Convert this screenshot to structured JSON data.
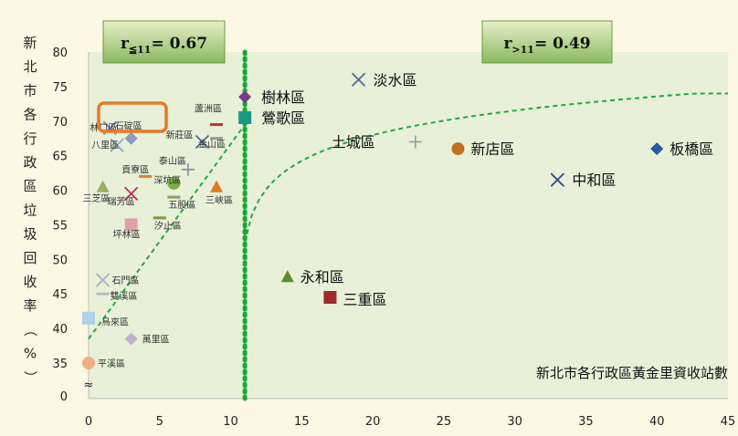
{
  "chart_data": {
    "type": "scatter",
    "ylabel": "新北市各行政區垃圾回收率（%）",
    "xlabel_annotation": "新北市各行政區黃金里資收站數",
    "xlim": [
      0,
      45
    ],
    "ylim": [
      0,
      80
    ],
    "x_ticks": [
      0,
      5,
      10,
      15,
      20,
      25,
      30,
      35,
      40,
      45
    ],
    "y_ticks": [
      0,
      35,
      40,
      45,
      50,
      55,
      60,
      65,
      70,
      75,
      80
    ],
    "y_break_symbol": "≈",
    "divider_x": 11,
    "banners": [
      {
        "base": "r",
        "sub": "≦11",
        "text": "= 0.67"
      },
      {
        "base": "r",
        "sub": ">11",
        "text": "= 0.49"
      }
    ],
    "highlight_label": "石碇區",
    "points": [
      {
        "name": "淡水區",
        "x": 19,
        "y": 76,
        "marker": "x",
        "color": "#5a6a9a",
        "size": "big"
      },
      {
        "name": "樹林區",
        "x": 11,
        "y": 73.5,
        "marker": "diamond",
        "color": "#7a3a8a",
        "size": "big"
      },
      {
        "name": "鶯歌區",
        "x": 11,
        "y": 70.5,
        "marker": "square",
        "color": "#1a9a8a",
        "size": "big"
      },
      {
        "name": "土城區",
        "x": 23,
        "y": 67,
        "marker": "plus",
        "color": "#999999",
        "size": "big"
      },
      {
        "name": "新店區",
        "x": 26,
        "y": 66,
        "marker": "circle",
        "color": "#c07020",
        "size": "big"
      },
      {
        "name": "板橋區",
        "x": 40,
        "y": 66,
        "marker": "diamond",
        "color": "#2a5aa0",
        "size": "big"
      },
      {
        "name": "中和區",
        "x": 33,
        "y": 61.5,
        "marker": "x",
        "color": "#3a4a8a",
        "size": "big"
      },
      {
        "name": "永和區",
        "x": 14,
        "y": 47.5,
        "marker": "triangle",
        "color": "#5a8a2a",
        "size": "big"
      },
      {
        "name": "三重區",
        "x": 17,
        "y": 44.5,
        "marker": "square",
        "color": "#a02a2a",
        "size": "big"
      },
      {
        "name": "林口區",
        "x": 1.5,
        "y": 69,
        "marker": "x",
        "color": "#7a8aba",
        "size": "small"
      },
      {
        "name": "石碇區",
        "x": 3,
        "y": 67.5,
        "marker": "diamond",
        "color": "#8a9ac0",
        "size": "small"
      },
      {
        "name": "八里區",
        "x": 2,
        "y": 66.5,
        "marker": "x",
        "color": "#8aaac0",
        "size": "small"
      },
      {
        "name": "蘆洲區",
        "x": 9,
        "y": 69.5,
        "marker": "dash",
        "color": "#c03030",
        "size": "small"
      },
      {
        "name": "新莊區",
        "x": 8,
        "y": 67,
        "marker": "x",
        "color": "#4a6aa0",
        "size": "small"
      },
      {
        "name": "金山區",
        "x": 9,
        "y": 67.5,
        "marker": "dash",
        "color": "#999999",
        "size": "small"
      },
      {
        "name": "泰山區",
        "x": 7,
        "y": 63,
        "marker": "plus",
        "color": "#8a8aa0",
        "size": "small"
      },
      {
        "name": "貢寮區",
        "x": 4,
        "y": 62,
        "marker": "dash",
        "color": "#e08030",
        "size": "small"
      },
      {
        "name": "深坑區",
        "x": 6,
        "y": 61,
        "marker": "circle",
        "color": "#7ab040",
        "size": "small"
      },
      {
        "name": "三峽區",
        "x": 9,
        "y": 60.5,
        "marker": "triangle",
        "color": "#e07a20",
        "size": "small"
      },
      {
        "name": "三芝區",
        "x": 1,
        "y": 60.5,
        "marker": "triangle",
        "color": "#9ab060",
        "size": "small"
      },
      {
        "name": "瑞芳區",
        "x": 3,
        "y": 59.5,
        "marker": "x",
        "color": "#c03050",
        "size": "small"
      },
      {
        "name": "五股區",
        "x": 6,
        "y": 59,
        "marker": "dash",
        "color": "#8aa060",
        "size": "small"
      },
      {
        "name": "汐止區",
        "x": 5,
        "y": 56,
        "marker": "dash",
        "color": "#7a9a40",
        "size": "small"
      },
      {
        "name": "坪林區",
        "x": 3,
        "y": 55,
        "marker": "square",
        "color": "#e0a0a8",
        "size": "small"
      },
      {
        "name": "石門區",
        "x": 1,
        "y": 47,
        "marker": "x",
        "color": "#aab0d0",
        "size": "small"
      },
      {
        "name": "雙溪區",
        "x": 1,
        "y": 45,
        "marker": "dash",
        "color": "#bbbbbb",
        "size": "small"
      },
      {
        "name": "烏來區",
        "x": 0,
        "y": 41.5,
        "marker": "square",
        "color": "#b0d0e8",
        "size": "small"
      },
      {
        "name": "萬里區",
        "x": 3,
        "y": 38.5,
        "marker": "diamond",
        "color": "#c0b0d0",
        "size": "small"
      },
      {
        "name": "平溪區",
        "x": 0,
        "y": 35,
        "marker": "circle",
        "color": "#f0b080",
        "size": "small"
      }
    ],
    "trend_left": [
      [
        0,
        38.5
      ],
      [
        11,
        69.5
      ]
    ],
    "trend_right_shape": "log"
  }
}
